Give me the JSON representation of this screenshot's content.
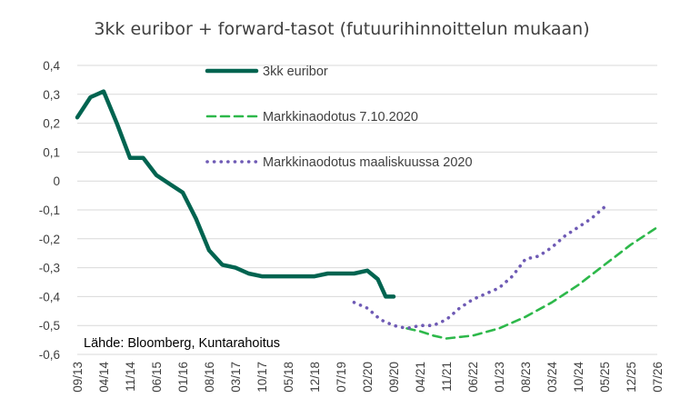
{
  "chart_data": {
    "type": "line",
    "title": "3kk euribor + forward-tasot (futuurihinnoittelun mukaan)",
    "source_note": "Lähde: Bloomberg, Kuntarahoitus",
    "y_ticks": [
      "0,4",
      "0,3",
      "0,2",
      "0,1",
      "0",
      "-0,1",
      "-0,2",
      "-0,3",
      "-0,4",
      "-0,5",
      "-0,6"
    ],
    "ylim": [
      -0.6,
      0.4
    ],
    "x_tick_labels": [
      "09/13",
      "04/14",
      "11/14",
      "06/15",
      "01/16",
      "08/16",
      "03/17",
      "10/17",
      "05/18",
      "12/18",
      "07/19",
      "02/20",
      "09/20",
      "04/21",
      "11/21",
      "06/22",
      "01/23",
      "08/23",
      "03/24",
      "10/24",
      "05/25",
      "12/25",
      "07/26"
    ],
    "grid": true,
    "legend_position": "top-center",
    "colors": {
      "euribor": "#006450",
      "forecast_oct": "#2db84a",
      "forecast_mar": "#6f5bb5",
      "grid": "#d9d9d9"
    },
    "series": [
      {
        "name": "3kk euribor",
        "style": "solid",
        "x": [
          0.0,
          0.5,
          1.0,
          1.5,
          2.0,
          2.5,
          3.0,
          3.5,
          4.0,
          4.5,
          5.0,
          5.5,
          6.0,
          6.5,
          7.0,
          7.5,
          8.0,
          8.5,
          9.0,
          9.5,
          10.0,
          10.5,
          11.0,
          11.4,
          11.7,
          12.0
        ],
        "values": [
          0.22,
          0.29,
          0.31,
          0.2,
          0.08,
          0.08,
          0.02,
          -0.01,
          -0.04,
          -0.13,
          -0.24,
          -0.29,
          -0.3,
          -0.32,
          -0.33,
          -0.33,
          -0.33,
          -0.33,
          -0.33,
          -0.32,
          -0.32,
          -0.32,
          -0.31,
          -0.34,
          -0.4,
          -0.4
        ]
      },
      {
        "name": "Markkinaodotus 7.10.2020",
        "style": "dashed",
        "x": [
          12.5,
          13.0,
          13.5,
          14.0,
          15.0,
          16.0,
          17.0,
          18.0,
          19.0,
          20.0,
          21.0,
          22.0
        ],
        "values": [
          -0.51,
          -0.52,
          -0.535,
          -0.545,
          -0.535,
          -0.51,
          -0.47,
          -0.42,
          -0.36,
          -0.29,
          -0.22,
          -0.16
        ]
      },
      {
        "name": "Markkinaodotus maaliskuussa 2020",
        "style": "dotted",
        "x": [
          10.5,
          11.0,
          11.5,
          12.0,
          12.5,
          13.0,
          13.5,
          14.0,
          14.5,
          15.0,
          15.5,
          16.0,
          16.5,
          17.0,
          17.5,
          18.0,
          18.5,
          19.0,
          19.5,
          20.0
        ],
        "values": [
          -0.42,
          -0.44,
          -0.48,
          -0.5,
          -0.51,
          -0.5,
          -0.5,
          -0.48,
          -0.44,
          -0.41,
          -0.39,
          -0.37,
          -0.33,
          -0.27,
          -0.26,
          -0.23,
          -0.19,
          -0.16,
          -0.13,
          -0.09
        ]
      }
    ]
  }
}
